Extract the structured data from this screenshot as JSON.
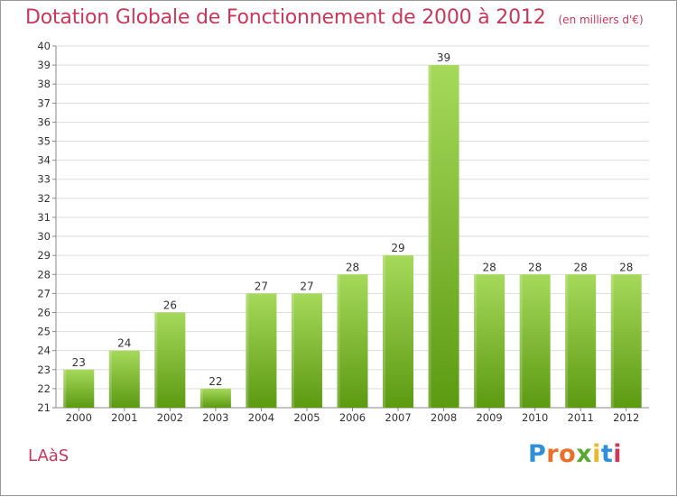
{
  "header": {
    "title": "Dotation Globale de Fonctionnement de 2000 à 2012",
    "unit": "(en milliers d'€)"
  },
  "footer": {
    "commune": "LAàS",
    "logo": {
      "text": "Proxiti",
      "letter_colors": [
        "#2f8fd8",
        "#e8712a",
        "#e8712a",
        "#5aa832",
        "#e8b82a",
        "#2f8fd8",
        "#c8385a"
      ]
    }
  },
  "colors": {
    "title": "#c8385a",
    "bar_top": "#a6d95a",
    "bar_bottom": "#5c9a12",
    "grid": "#dddddd"
  },
  "chart_data": {
    "type": "bar",
    "categories": [
      "2000",
      "2001",
      "2002",
      "2003",
      "2004",
      "2005",
      "2006",
      "2007",
      "2008",
      "2009",
      "2010",
      "2011",
      "2012"
    ],
    "values": [
      23,
      24,
      26,
      22,
      27,
      27,
      28,
      29,
      39,
      28,
      28,
      28,
      28
    ],
    "ylim": [
      21,
      40
    ],
    "yticks": [
      21,
      22,
      23,
      24,
      25,
      26,
      27,
      28,
      29,
      30,
      31,
      32,
      33,
      34,
      35,
      36,
      37,
      38,
      39,
      40
    ],
    "grid": true,
    "data_labels": true
  }
}
